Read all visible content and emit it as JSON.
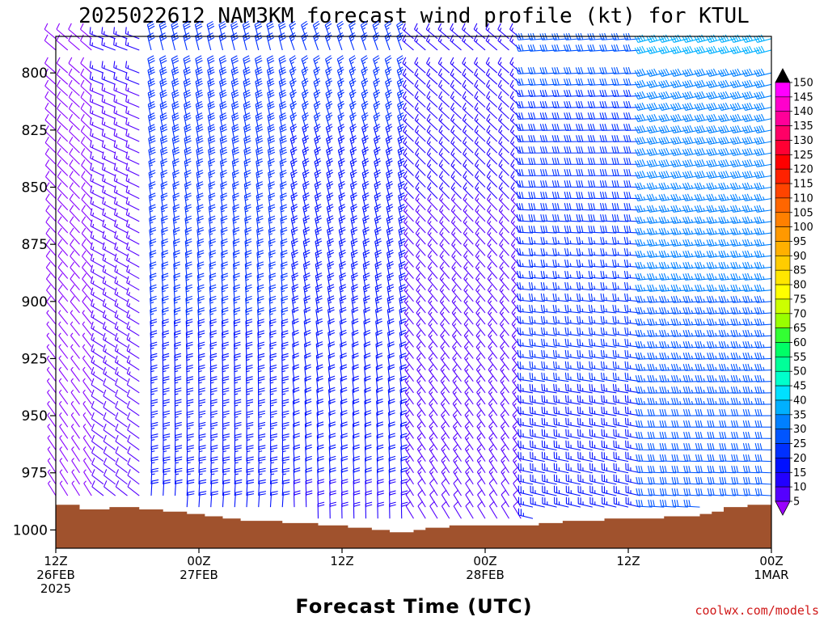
{
  "colors": {
    "terrain": "#a0522d",
    "credit": "#d01818",
    "axis": "#000000"
  },
  "chart_data": {
    "type": "wind-profile",
    "title": "2025022612 NAM3KM forecast wind profile (kt) for KTUL",
    "xlabel": "Forecast Time (UTC)",
    "ylabel": "",
    "credit": "coolwx.com/models",
    "x_range_hours": [
      0,
      60
    ],
    "y_range_hpa": [
      1008,
      784
    ],
    "y_ticks": [
      800,
      825,
      850,
      875,
      900,
      925,
      950,
      975,
      1000
    ],
    "x_ticks": [
      {
        "hour": 0,
        "line1": "12Z",
        "line2": "26FEB",
        "line3": "2025"
      },
      {
        "hour": 12,
        "line1": "00Z",
        "line2": "27FEB",
        "line3": ""
      },
      {
        "hour": 24,
        "line1": "12Z",
        "line2": "",
        "line3": ""
      },
      {
        "hour": 36,
        "line1": "00Z",
        "line2": "28FEB",
        "line3": ""
      },
      {
        "hour": 48,
        "line1": "12Z",
        "line2": "",
        "line3": ""
      },
      {
        "hour": 60,
        "line1": "00Z",
        "line2": "1MAR",
        "line3": ""
      }
    ],
    "colorbar": {
      "levels": [
        150,
        145,
        140,
        135,
        130,
        125,
        120,
        115,
        110,
        105,
        100,
        95,
        90,
        85,
        80,
        75,
        70,
        65,
        60,
        55,
        50,
        45,
        40,
        35,
        30,
        25,
        20,
        15,
        10,
        5
      ],
      "colors": [
        "#ff00ff",
        "#ff00cc",
        "#ff0099",
        "#ff0066",
        "#ff0033",
        "#ff0000",
        "#ff2200",
        "#ff4400",
        "#ff6600",
        "#ff8000",
        "#ff9900",
        "#ffb000",
        "#ffcc00",
        "#ffe600",
        "#ffff00",
        "#ccff00",
        "#99ff00",
        "#33ff33",
        "#00ff66",
        "#00ff99",
        "#00ffcc",
        "#00e0ff",
        "#00b0ff",
        "#0080ff",
        "#0055ff",
        "#0030ff",
        "#0010ff",
        "#2200ff",
        "#5500ff",
        "#8800ff"
      ],
      "top_color": "#000000",
      "bottom_color": "#9900ff"
    },
    "surface_pressure": [
      {
        "hour": 0,
        "p": 989
      },
      {
        "hour": 2,
        "p": 991
      },
      {
        "hour": 4.5,
        "p": 990
      },
      {
        "hour": 7,
        "p": 991
      },
      {
        "hour": 9,
        "p": 992
      },
      {
        "hour": 11,
        "p": 993
      },
      {
        "hour": 12.5,
        "p": 994
      },
      {
        "hour": 14,
        "p": 995
      },
      {
        "hour": 15.5,
        "p": 996
      },
      {
        "hour": 19,
        "p": 997
      },
      {
        "hour": 22,
        "p": 998
      },
      {
        "hour": 24.5,
        "p": 999
      },
      {
        "hour": 26.5,
        "p": 1000
      },
      {
        "hour": 28,
        "p": 1001
      },
      {
        "hour": 30,
        "p": 1000
      },
      {
        "hour": 31,
        "p": 999
      },
      {
        "hour": 33,
        "p": 998
      },
      {
        "hour": 40.5,
        "p": 997
      },
      {
        "hour": 42.5,
        "p": 996
      },
      {
        "hour": 46,
        "p": 995
      },
      {
        "hour": 51,
        "p": 994
      },
      {
        "hour": 54,
        "p": 993
      },
      {
        "hour": 55,
        "p": 992
      },
      {
        "hour": 56,
        "p": 990
      },
      {
        "hour": 58,
        "p": 989
      },
      {
        "hour": 60,
        "p": 989
      }
    ],
    "barb_hours_step": 1,
    "barb_levels_hpa": [
      785,
      790,
      800,
      805,
      810,
      815,
      820,
      825,
      830,
      835,
      840,
      845,
      850,
      855,
      860,
      865,
      870,
      875,
      880,
      885,
      890,
      895,
      900,
      905,
      910,
      915,
      920,
      925,
      930,
      935,
      940,
      945,
      950,
      955,
      960,
      965,
      970,
      975,
      980,
      985,
      990,
      995,
      1000
    ],
    "wind_regimes": [
      {
        "from_hour": 0,
        "to_hour": 4,
        "direction_deg": 320,
        "speed_kt": 8
      },
      {
        "from_hour": 4,
        "to_hour": 8,
        "direction_deg": 300,
        "speed_kt": 14
      },
      {
        "from_hour": 8,
        "to_hour": 20,
        "direction_deg": 355,
        "speed_kt": 27
      },
      {
        "from_hour": 20,
        "to_hour": 30,
        "direction_deg": 350,
        "speed_kt": 24
      },
      {
        "from_hour": 30,
        "to_hour": 40,
        "direction_deg": 320,
        "speed_kt": 15
      },
      {
        "from_hour": 40,
        "to_hour": 50,
        "direction_deg": 275,
        "speed_kt": 28
      },
      {
        "from_hour": 50,
        "to_hour": 60,
        "direction_deg": 265,
        "speed_kt": 37
      }
    ]
  }
}
